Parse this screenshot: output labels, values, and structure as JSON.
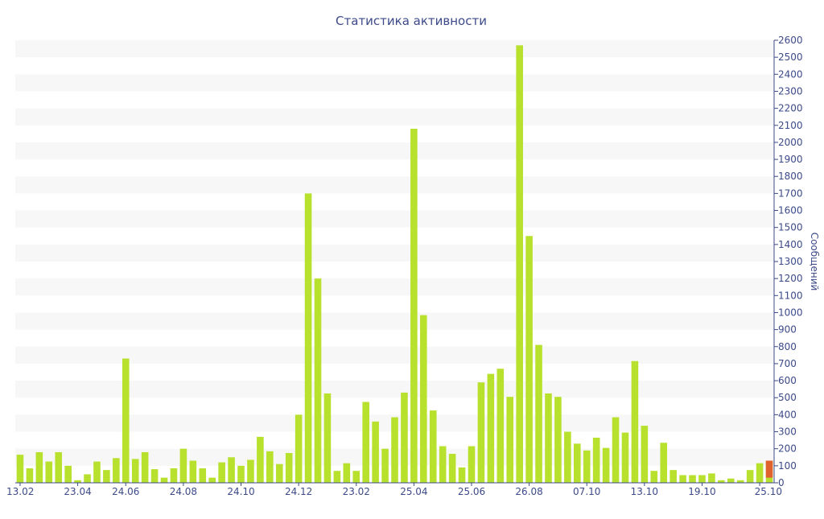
{
  "chart_data": {
    "type": "bar",
    "title": "Статистика активности",
    "xlabel": "",
    "ylabel": "Сообщений",
    "ylim": [
      0,
      2600
    ],
    "ytick_step": 100,
    "grid": "horizontal-bands",
    "colors": {
      "bar": "#b8e12e",
      "highlight": "#e0622c",
      "axis": "#3c4a8a",
      "band": "#f7f7f7"
    },
    "x_tick_labels": [
      {
        "label": "13.02",
        "index": 0
      },
      {
        "label": "23.04",
        "index": 6
      },
      {
        "label": "24.06",
        "index": 11
      },
      {
        "label": "24.08",
        "index": 17
      },
      {
        "label": "24.10",
        "index": 23
      },
      {
        "label": "24.12",
        "index": 29
      },
      {
        "label": "23.02",
        "index": 35
      },
      {
        "label": "25.04",
        "index": 41
      },
      {
        "label": "25.06",
        "index": 47
      },
      {
        "label": "26.08",
        "index": 53
      },
      {
        "label": "07.10",
        "index": 59
      },
      {
        "label": "13.10",
        "index": 65
      },
      {
        "label": "19.10",
        "index": 71
      },
      {
        "label": "25.10",
        "index": 77
      }
    ],
    "values": [
      165,
      85,
      180,
      125,
      180,
      100,
      15,
      50,
      125,
      75,
      145,
      730,
      140,
      180,
      80,
      30,
      85,
      200,
      130,
      85,
      30,
      120,
      150,
      100,
      135,
      270,
      185,
      110,
      175,
      400,
      1700,
      1200,
      525,
      70,
      115,
      70,
      475,
      360,
      200,
      385,
      530,
      2080,
      985,
      425,
      215,
      170,
      90,
      215,
      590,
      640,
      670,
      505,
      2570,
      1450,
      810,
      525,
      505,
      300,
      230,
      190,
      265,
      205,
      385,
      295,
      715,
      335,
      70,
      235,
      75,
      45,
      45,
      45,
      55,
      15,
      25,
      15,
      75,
      115,
      130
    ],
    "highlight": {
      "index": 78,
      "lower_value": 30
    }
  }
}
